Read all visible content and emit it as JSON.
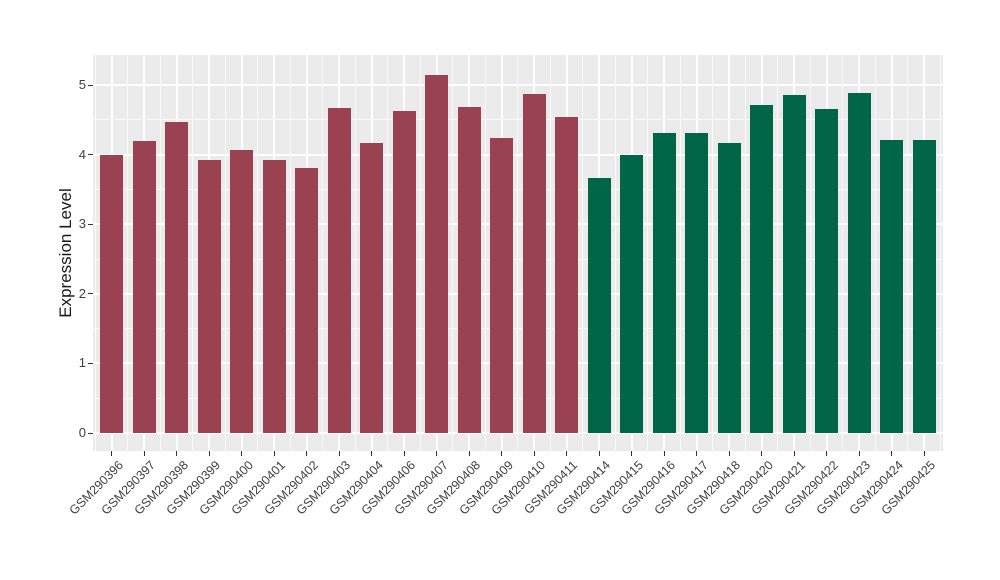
{
  "figure": {
    "background": "#FFFFFF"
  },
  "panel": {
    "background": "#EBEBEB",
    "grid_color": "#FFFFFF"
  },
  "axes": {
    "y_title": "Expression Level",
    "y_tick_labels": [
      "0",
      "1",
      "2",
      "3",
      "4",
      "5"
    ],
    "tick_text_color": "#404040",
    "axis_title_color": "#1A1A1A",
    "tick_mark_color": "#333333"
  },
  "chart_data": {
    "type": "bar",
    "title": "",
    "xlabel": "",
    "ylabel": "Expression Level",
    "ylim": [
      -0.26,
      5.43
    ],
    "yticks": [
      0,
      1,
      2,
      3,
      4,
      5
    ],
    "minor_yticks": [
      0.5,
      1.5,
      2.5,
      3.5,
      4.5
    ],
    "grid": "white major and minor gridlines on grey panel (ggplot theme_grey)",
    "legend_position": "none",
    "categories": [
      "GSM290396",
      "GSM290397",
      "GSM290398",
      "GSM290399",
      "GSM290400",
      "GSM290401",
      "GSM290402",
      "GSM290403",
      "GSM290404",
      "GSM290406",
      "GSM290407",
      "GSM290408",
      "GSM290409",
      "GSM290410",
      "GSM290411",
      "GSM290414",
      "GSM290415",
      "GSM290416",
      "GSM290417",
      "GSM290418",
      "GSM290420",
      "GSM290421",
      "GSM290422",
      "GSM290423",
      "GSM290424",
      "GSM290425"
    ],
    "values": [
      4.0,
      4.19,
      4.47,
      3.92,
      4.07,
      3.92,
      3.81,
      4.67,
      4.17,
      4.63,
      5.15,
      4.68,
      4.24,
      4.87,
      4.54,
      3.66,
      3.99,
      4.31,
      4.31,
      4.17,
      4.71,
      4.86,
      4.66,
      4.88,
      4.21,
      4.21
    ],
    "groups": [
      1,
      1,
      1,
      1,
      1,
      1,
      1,
      1,
      1,
      1,
      1,
      1,
      1,
      1,
      1,
      2,
      2,
      2,
      2,
      2,
      2,
      2,
      2,
      2,
      2,
      2
    ],
    "group_colors": {
      "1": "#9A4252",
      "2": "#006647"
    }
  }
}
